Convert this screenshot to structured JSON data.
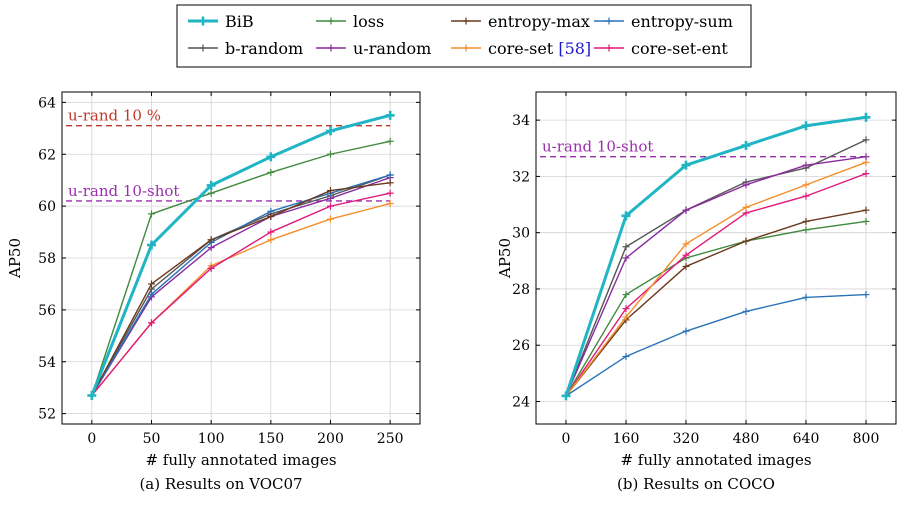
{
  "legend": {
    "items": [
      {
        "label": "BiB",
        "color": "#1fb5c4",
        "bold": true
      },
      {
        "label": "loss",
        "color": "#3f8a3f"
      },
      {
        "label": "entropy-max",
        "color": "#6b3a1e"
      },
      {
        "label": "entropy-sum",
        "color": "#2a72b8"
      },
      {
        "label": "b-random",
        "color": "#555555"
      },
      {
        "label": "u-random",
        "color": "#8a2b9e"
      },
      {
        "label": "core-set",
        "ref": "[58]",
        "ref_color": "#1a1acc",
        "color": "#f28e2b"
      },
      {
        "label": "core-set-ent",
        "color": "#e0197a"
      }
    ]
  },
  "chart_data": [
    {
      "type": "line",
      "caption": "(a) Results on VOC07",
      "xlabel": "# fully annotated images",
      "ylabel": "AP50",
      "x": [
        0,
        50,
        100,
        150,
        200,
        250
      ],
      "xticks": [
        "0",
        "50",
        "100",
        "150",
        "200",
        "250"
      ],
      "yticks": [
        "52",
        "54",
        "56",
        "58",
        "60",
        "62",
        "64"
      ],
      "xlim": [
        -25,
        275
      ],
      "ylim": [
        51.6,
        64.4
      ],
      "grid": true,
      "series": [
        {
          "name": "loss",
          "color": "#3f8a3f",
          "values": [
            52.7,
            59.7,
            60.5,
            61.3,
            62.0,
            62.5
          ]
        },
        {
          "name": "b-random",
          "color": "#555555",
          "values": [
            52.7,
            56.8,
            58.7,
            59.7,
            60.4,
            61.2
          ]
        },
        {
          "name": "u-random",
          "color": "#8a2b9e",
          "values": [
            52.7,
            56.5,
            58.4,
            59.6,
            60.3,
            61.1
          ]
        },
        {
          "name": "entropy-sum",
          "color": "#2a72b8",
          "values": [
            52.7,
            56.6,
            58.6,
            59.8,
            60.5,
            61.2
          ]
        },
        {
          "name": "entropy-max",
          "color": "#6b3a1e",
          "values": [
            52.7,
            57.0,
            58.7,
            59.6,
            60.6,
            60.9
          ]
        },
        {
          "name": "core-set",
          "color": "#f28e2b",
          "values": [
            52.7,
            55.5,
            57.7,
            58.7,
            59.5,
            60.1
          ]
        },
        {
          "name": "core-set-ent",
          "color": "#e0197a",
          "values": [
            52.7,
            55.5,
            57.6,
            59.0,
            60.0,
            60.5
          ]
        },
        {
          "name": "BiB",
          "color": "#1fb5c4",
          "bold": true,
          "values": [
            52.7,
            58.5,
            60.8,
            61.9,
            62.9,
            63.5
          ]
        }
      ],
      "reference_lines": [
        {
          "label": "u-rand 10 %",
          "value": 63.1,
          "color": "#c0392b"
        },
        {
          "label": "u-rand 10-shot",
          "value": 60.2,
          "color": "#9b2fae"
        }
      ]
    },
    {
      "type": "line",
      "caption": "(b) Results on COCO",
      "xlabel": "# fully annotated images",
      "ylabel": "AP50",
      "x": [
        0,
        160,
        320,
        480,
        640,
        800
      ],
      "xticks": [
        "0",
        "160",
        "320",
        "480",
        "640",
        "800"
      ],
      "yticks": [
        "24",
        "26",
        "28",
        "30",
        "32",
        "34"
      ],
      "xlim": [
        -80,
        880
      ],
      "ylim": [
        23.2,
        35.0
      ],
      "grid": true,
      "series": [
        {
          "name": "entropy-sum",
          "color": "#2a72b8",
          "values": [
            24.2,
            25.6,
            26.5,
            27.2,
            27.7,
            27.8
          ]
        },
        {
          "name": "loss",
          "color": "#3f8a3f",
          "values": [
            24.2,
            27.8,
            29.1,
            29.7,
            30.1,
            30.4
          ]
        },
        {
          "name": "entropy-max",
          "color": "#6b3a1e",
          "values": [
            24.2,
            26.9,
            28.8,
            29.7,
            30.4,
            30.8
          ]
        },
        {
          "name": "core-set-ent",
          "color": "#e0197a",
          "values": [
            24.2,
            27.3,
            29.2,
            30.7,
            31.3,
            32.1
          ]
        },
        {
          "name": "core-set",
          "color": "#f28e2b",
          "values": [
            24.2,
            27.0,
            29.6,
            30.9,
            31.7,
            32.5
          ]
        },
        {
          "name": "b-random",
          "color": "#555555",
          "values": [
            24.2,
            29.5,
            30.8,
            31.8,
            32.3,
            33.3
          ]
        },
        {
          "name": "u-random",
          "color": "#8a2b9e",
          "values": [
            24.2,
            29.1,
            30.8,
            31.7,
            32.4,
            32.7
          ]
        },
        {
          "name": "BiB",
          "color": "#1fb5c4",
          "bold": true,
          "values": [
            24.2,
            30.6,
            32.4,
            33.1,
            33.8,
            34.1
          ]
        }
      ],
      "reference_lines": [
        {
          "label": "u-rand 10-shot",
          "value": 32.7,
          "color": "#9b2fae"
        }
      ]
    }
  ]
}
